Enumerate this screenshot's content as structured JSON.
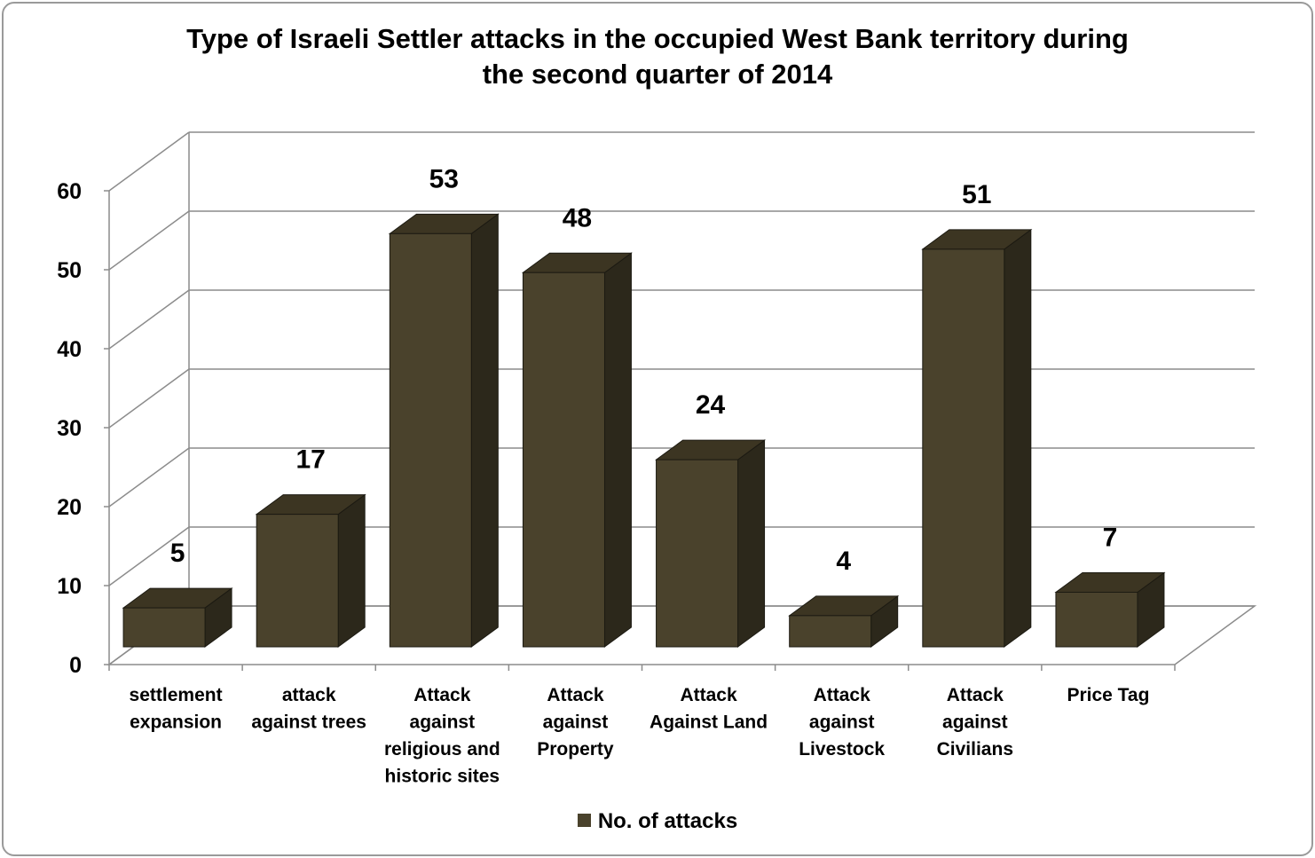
{
  "chart_data": {
    "type": "bar",
    "title_lines": [
      "Type of Israeli Settler attacks in the occupied West Bank territory during",
      "the second quarter of 2014"
    ],
    "categories": [
      [
        "settlement",
        "expansion"
      ],
      [
        "attack",
        "against trees"
      ],
      [
        "Attack",
        "against",
        "religious and",
        "historic sites"
      ],
      [
        "Attack",
        "against",
        "Property"
      ],
      [
        "Attack",
        "Against Land"
      ],
      [
        "Attack",
        "against",
        "Livestock"
      ],
      [
        "Attack",
        "against",
        "Civilians"
      ],
      [
        "Price Tag"
      ]
    ],
    "series": [
      {
        "name": "No. of attacks",
        "values": [
          5,
          17,
          53,
          48,
          24,
          4,
          51,
          7
        ]
      }
    ],
    "ylim": [
      0,
      60
    ],
    "y_ticks": [
      0,
      10,
      20,
      30,
      40,
      50,
      60
    ],
    "grid": true,
    "legend_position": "bottom",
    "data_labels": true,
    "style": "3d-column"
  },
  "colors": {
    "bar_front": "#4a422c",
    "bar_top": "#3c3522",
    "bar_side": "#2c281b",
    "bar_edge": "#1c1a12",
    "grid": "#8c8c8c",
    "frame": "#9a9a9a"
  }
}
